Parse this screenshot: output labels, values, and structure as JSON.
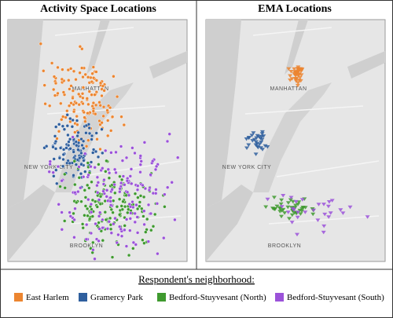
{
  "panels": [
    {
      "title": "Activity Space Locations",
      "map_labels": [
        "MANHATTAN",
        "NEW YORK CITY",
        "BROOKLYN"
      ]
    },
    {
      "title": "EMA Locations",
      "map_labels": [
        "MANHATTAN",
        "NEW YORK CITY",
        "BROOKLYN"
      ]
    }
  ],
  "legend": {
    "title": "Respondent's neighborhood:",
    "items": [
      {
        "label": "East Harlem",
        "color": "#ec8530"
      },
      {
        "label": "Gramercy Park",
        "color": "#2f5f9e"
      },
      {
        "label": "Bedford-Stuyvesant (North)",
        "color": "#3f9a2f"
      },
      {
        "label": "Bedford-Stuyvesant (South)",
        "color": "#9b52d9"
      }
    ]
  }
}
